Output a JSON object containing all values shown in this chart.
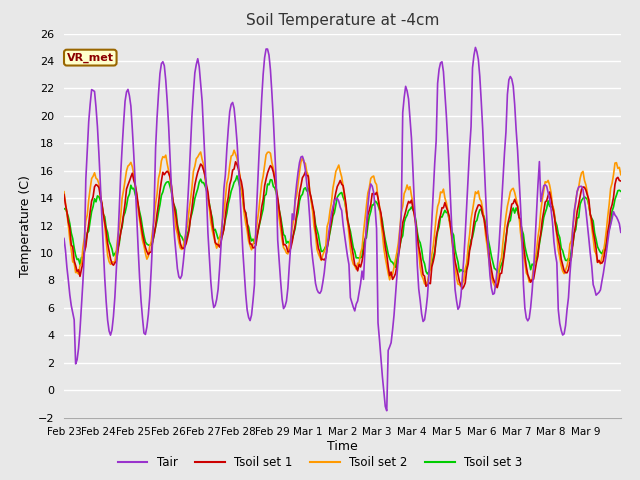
{
  "title": "Soil Temperature at -4cm",
  "xlabel": "Time",
  "ylabel": "Temperature (C)",
  "ylim": [
    -2,
    26
  ],
  "yticks": [
    -2,
    0,
    2,
    4,
    6,
    8,
    10,
    12,
    14,
    16,
    18,
    20,
    22,
    24,
    26
  ],
  "xtick_labels": [
    "Feb 23",
    "Feb 24",
    "Feb 25",
    "Feb 26",
    "Feb 27",
    "Feb 28",
    "Feb 29",
    "Mar 1",
    "Mar 2",
    "Mar 3",
    "Mar 4",
    "Mar 5",
    "Mar 6",
    "Mar 7",
    "Mar 8",
    "Mar 9"
  ],
  "colors": {
    "Tair": "#9933cc",
    "Tsoil1": "#cc0000",
    "Tsoil2": "#ff9900",
    "Tsoil3": "#00cc00"
  },
  "legend_labels": [
    "Tair",
    "Tsoil set 1",
    "Tsoil set 2",
    "Tsoil set 3"
  ],
  "annotation_text": "VR_met",
  "annotation_box_color": "#ffffcc",
  "annotation_border_color": "#996600",
  "plot_bg_color": "#e8e8e8",
  "fig_bg_color": "#e8e8e8",
  "grid_color": "#ffffff",
  "line_width": 1.2
}
